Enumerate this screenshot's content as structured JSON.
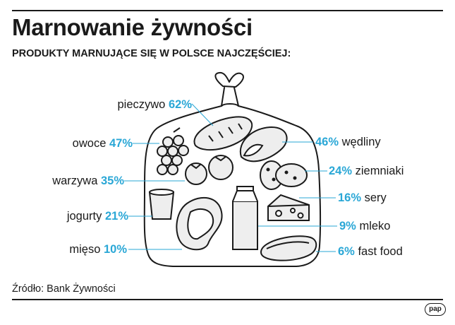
{
  "title": "Marnowanie żywności",
  "subtitle": "PRODUKTY MARNUJĄCE SIĘ W POLSCE NAJCZĘŚCIEJ:",
  "source": "Źródło: Bank Żywności",
  "logo": "pap",
  "colors": {
    "accent": "#2aa7d6",
    "ink": "#1a1a1a",
    "fill": "#eeeeee"
  },
  "chart_data": {
    "type": "bar",
    "unit": "%",
    "categories": [
      "pieczywo",
      "owoce",
      "warzywa",
      "jogurty",
      "mięso",
      "wędliny",
      "ziemniaki",
      "sery",
      "mleko",
      "fast food"
    ],
    "values": [
      62,
      47,
      35,
      21,
      10,
      46,
      24,
      16,
      9,
      6
    ],
    "labels": [
      {
        "name": "pieczywo",
        "value": "62%"
      },
      {
        "name": "owoce",
        "value": "47%"
      },
      {
        "name": "warzywa",
        "value": "35%"
      },
      {
        "name": "jogurty",
        "value": "21%"
      },
      {
        "name": "mięso",
        "value": "10%"
      },
      {
        "name": "wędliny",
        "value": "46%"
      },
      {
        "name": "ziemniaki",
        "value": "24%"
      },
      {
        "name": "sery",
        "value": "16%"
      },
      {
        "name": "mleko",
        "value": "9%"
      },
      {
        "name": "fast food",
        "value": "6%"
      }
    ]
  }
}
